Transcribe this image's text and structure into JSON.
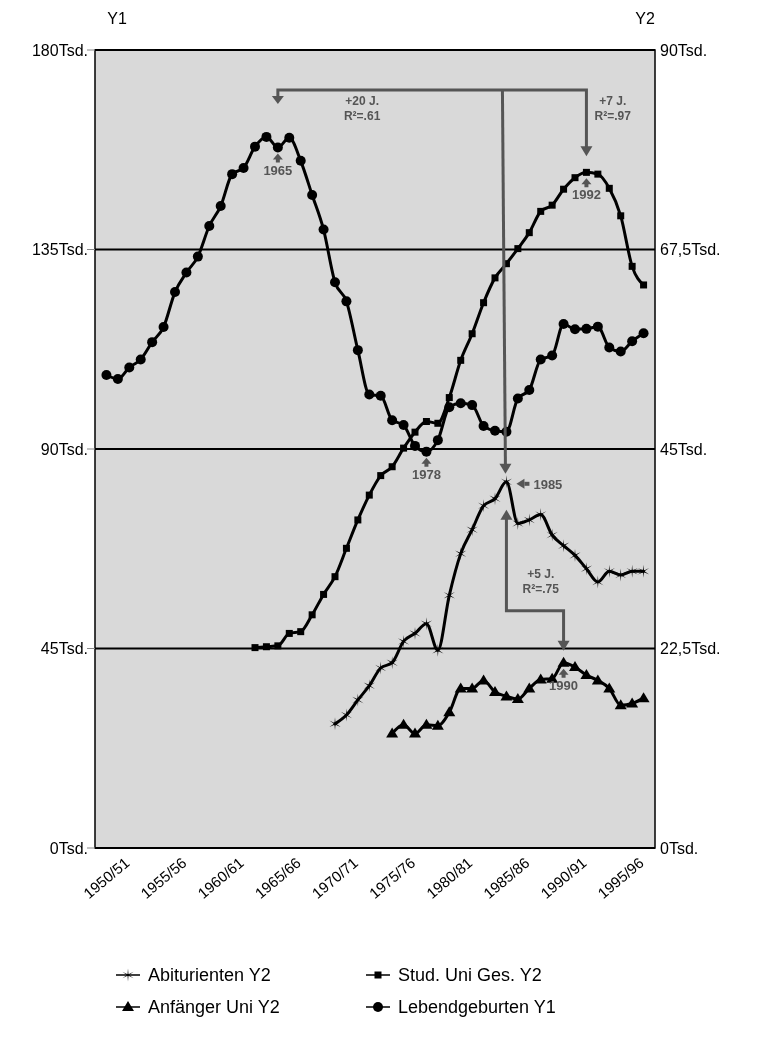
{
  "chart_data": {
    "type": "line",
    "categories": [
      "1950/51",
      null,
      null,
      null,
      null,
      "1955/56",
      null,
      null,
      null,
      null,
      "1960/61",
      null,
      null,
      null,
      null,
      "1965/66",
      null,
      null,
      null,
      null,
      "1970/71",
      null,
      null,
      null,
      null,
      "1975/76",
      null,
      null,
      null,
      null,
      "1980/81",
      null,
      null,
      null,
      null,
      "1985/86",
      null,
      null,
      null,
      null,
      "1990/91",
      null,
      null,
      null,
      null,
      "1995/96",
      null,
      null
    ],
    "ylabel": "Y1",
    "y2label": "Y2",
    "ylim": [
      0,
      180
    ],
    "yticks": [
      {
        "value": 0,
        "label": "0Tsd."
      },
      {
        "value": 45,
        "label": "45Tsd."
      },
      {
        "value": 90,
        "label": "90Tsd."
      },
      {
        "value": 135,
        "label": "135Tsd."
      },
      {
        "value": 180,
        "label": "180Tsd."
      }
    ],
    "y2lim": [
      0,
      90
    ],
    "y2ticks": [
      {
        "value": 0,
        "label": "0Tsd."
      },
      {
        "value": 22.5,
        "label": "22,5Tsd."
      },
      {
        "value": 45,
        "label": "45Tsd."
      },
      {
        "value": 67.5,
        "label": "67,5Tsd."
      },
      {
        "value": 90,
        "label": "90Tsd."
      }
    ],
    "grid": "y",
    "legend": "bottom",
    "series": [
      {
        "name": "Abiturienten Y2",
        "color": "#000000",
        "axis": "y2",
        "marker": "cross",
        "values": [
          null,
          null,
          null,
          null,
          null,
          null,
          null,
          null,
          null,
          null,
          null,
          null,
          null,
          null,
          null,
          null,
          null,
          null,
          null,
          null,
          14.0,
          15.0,
          16.7,
          18.3,
          20.3,
          20.9,
          23.3,
          24.2,
          25.3,
          22.3,
          28.5,
          33.2,
          35.9,
          38.6,
          39.4,
          41.3,
          36.6,
          37.0,
          37.6,
          35.3,
          34.1,
          33.0,
          31.5,
          30.0,
          31.2,
          30.8,
          31.2,
          31.2
        ]
      },
      {
        "name": "Stud. Uni Ges. Y2",
        "color": "#000000",
        "axis": "y2",
        "marker": "square",
        "values": [
          null,
          null,
          null,
          null,
          null,
          null,
          null,
          null,
          null,
          null,
          null,
          null,
          null,
          22.6,
          22.7,
          22.8,
          24.2,
          24.4,
          26.3,
          28.6,
          30.6,
          33.8,
          37.0,
          39.8,
          42.0,
          43.0,
          45.1,
          46.9,
          48.1,
          47.9,
          50.8,
          55.0,
          58.0,
          61.5,
          64.3,
          65.9,
          67.6,
          69.4,
          71.8,
          72.5,
          74.3,
          75.6,
          76.2,
          76.0,
          74.4,
          71.3,
          65.6,
          63.5
        ]
      },
      {
        "name": "Anfänger Uni Y2",
        "color": "#000000",
        "axis": "y2",
        "marker": "triangle",
        "values": [
          null,
          null,
          null,
          null,
          null,
          null,
          null,
          null,
          null,
          null,
          null,
          null,
          null,
          null,
          null,
          null,
          null,
          null,
          null,
          null,
          null,
          null,
          null,
          null,
          null,
          12.9,
          13.9,
          12.9,
          13.9,
          13.8,
          15.3,
          18.0,
          18.0,
          18.9,
          17.6,
          17.1,
          16.8,
          18.0,
          19.0,
          19.1,
          20.9,
          20.4,
          19.5,
          18.9,
          18.0,
          16.1,
          16.3,
          16.9
        ]
      },
      {
        "name": "Lebendgeburten Y1",
        "color": "#000000",
        "axis": "y",
        "marker": "circle",
        "values": [
          106.7,
          105.8,
          108.4,
          110.2,
          114.1,
          117.5,
          125.4,
          129.8,
          133.4,
          140.3,
          144.8,
          152.0,
          153.4,
          158.2,
          160.4,
          158.0,
          160.2,
          155.0,
          147.3,
          139.5,
          127.6,
          123.3,
          112.3,
          102.3,
          102.0,
          96.5,
          95.4,
          90.7,
          89.4,
          92.0,
          99.4,
          100.3,
          99.9,
          95.2,
          94.1,
          93.9,
          101.4,
          103.3,
          110.2,
          111.1,
          118.2,
          117.0,
          117.1,
          117.6,
          112.9,
          112.0,
          114.3,
          116.1
        ]
      }
    ],
    "annotations": [
      "+20 J.\nR²=.61",
      "+7 J.\nR²=.97",
      "+5 J.\nR²=.75",
      "1965",
      "1978",
      "1985",
      "1990",
      "1992"
    ]
  }
}
